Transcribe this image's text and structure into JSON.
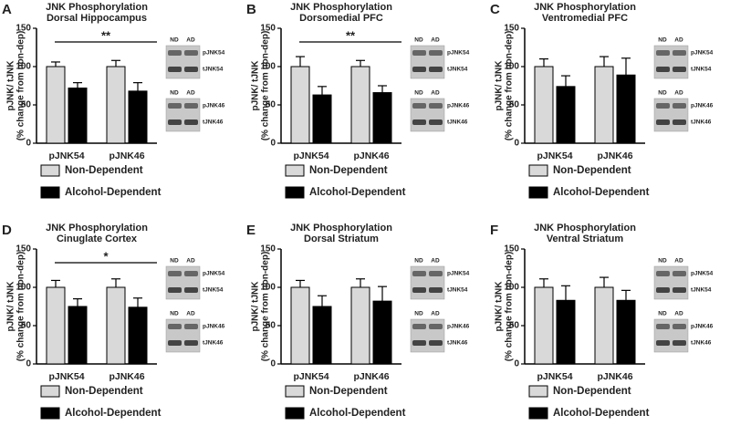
{
  "chart_data": [
    {
      "type": "bar",
      "panel": "A",
      "title": "JNK Phosphorylation",
      "subtitle": "Dorsal Hippocampus",
      "ylabel": [
        "pJNK/ tJNK",
        "(% change from non-dep)"
      ],
      "categories": [
        "pJNK54",
        "pJNK46"
      ],
      "series": [
        {
          "name": "Non-Dependent",
          "color": "#d9d9d9",
          "values": [
            100,
            100
          ],
          "errors": [
            6,
            8
          ]
        },
        {
          "name": "Alcohol-Dependent",
          "color": "#000000",
          "values": [
            72,
            68
          ],
          "errors": [
            7,
            11
          ]
        }
      ],
      "ylim": [
        0,
        150
      ],
      "yticks": [
        0,
        50,
        100,
        150
      ],
      "annotation": "**",
      "blot_lanes": [
        "ND",
        "AD"
      ],
      "blot_bands": [
        "pJNK54",
        "tJNK54",
        "pJNK46",
        "tJNK46"
      ]
    },
    {
      "type": "bar",
      "panel": "B",
      "title": "JNK Phosphorylation",
      "subtitle": "Dorsomedial PFC",
      "ylabel": [
        "pJNK/ tJNK",
        "(% change from non-dep)"
      ],
      "categories": [
        "pJNK54",
        "pJNK46"
      ],
      "series": [
        {
          "name": "Non-Dependent",
          "color": "#d9d9d9",
          "values": [
            100,
            100
          ],
          "errors": [
            13,
            8
          ]
        },
        {
          "name": "Alcohol-Dependent",
          "color": "#000000",
          "values": [
            63,
            66
          ],
          "errors": [
            11,
            9
          ]
        }
      ],
      "ylim": [
        0,
        150
      ],
      "yticks": [
        0,
        50,
        100,
        150
      ],
      "annotation": "**",
      "blot_lanes": [
        "ND",
        "AD"
      ],
      "blot_bands": [
        "pJNK54",
        "tJNK54",
        "pJNK46",
        "tJNK46"
      ]
    },
    {
      "type": "bar",
      "panel": "C",
      "title": "JNK Phosphorylation",
      "subtitle": "Ventromedial PFC",
      "ylabel": [
        "pJNK/ tJNK",
        "(% change from non-dep)"
      ],
      "categories": [
        "pJNK54",
        "pJNK46"
      ],
      "series": [
        {
          "name": "Non-Dependent",
          "color": "#d9d9d9",
          "values": [
            100,
            100
          ],
          "errors": [
            10,
            13
          ]
        },
        {
          "name": "Alcohol-Dependent",
          "color": "#000000",
          "values": [
            74,
            89
          ],
          "errors": [
            14,
            22
          ]
        }
      ],
      "ylim": [
        0,
        150
      ],
      "yticks": [
        0,
        50,
        100,
        150
      ],
      "blot_lanes": [
        "ND",
        "AD"
      ],
      "blot_bands": [
        "pJNK54",
        "tJNK54",
        "pJNK46",
        "tJNK46"
      ]
    },
    {
      "type": "bar",
      "panel": "D",
      "title": "JNK Phosphorylation",
      "subtitle": "Cinuglate Cortex",
      "ylabel": [
        "pJNK/ tJNK",
        "(% change from non-dep)"
      ],
      "categories": [
        "pJNK54",
        "pJNK46"
      ],
      "series": [
        {
          "name": "Non-Dependent",
          "color": "#d9d9d9",
          "values": [
            100,
            100
          ],
          "errors": [
            9,
            11
          ]
        },
        {
          "name": "Alcohol-Dependent",
          "color": "#000000",
          "values": [
            75,
            74
          ],
          "errors": [
            10,
            12
          ]
        }
      ],
      "ylim": [
        0,
        150
      ],
      "yticks": [
        0,
        50,
        100,
        150
      ],
      "annotation": "*",
      "blot_lanes": [
        "ND",
        "AD"
      ],
      "blot_bands": [
        "pJNK54",
        "tJNK54",
        "pJNK46",
        "tJNK46"
      ]
    },
    {
      "type": "bar",
      "panel": "E",
      "title": "JNK Phosphorylation",
      "subtitle": "Dorsal Striatum",
      "ylabel": [
        "pJNK/ tJNK",
        "(% change from non-dep)"
      ],
      "categories": [
        "pJNK54",
        "pJNK46"
      ],
      "series": [
        {
          "name": "Non-Dependent",
          "color": "#d9d9d9",
          "values": [
            100,
            100
          ],
          "errors": [
            9,
            11
          ]
        },
        {
          "name": "Alcohol-Dependent",
          "color": "#000000",
          "values": [
            75,
            82
          ],
          "errors": [
            14,
            19
          ]
        }
      ],
      "ylim": [
        0,
        150
      ],
      "yticks": [
        0,
        50,
        100,
        150
      ],
      "blot_lanes": [
        "ND",
        "AD"
      ],
      "blot_bands": [
        "pJNK54",
        "tJNK54",
        "pJNK46",
        "tJNK46"
      ]
    },
    {
      "type": "bar",
      "panel": "F",
      "title": "JNK Phosphorylation",
      "subtitle": "Ventral Striatum",
      "ylabel": [
        "pJNK/ tJNK",
        "(% change from non-dep)"
      ],
      "categories": [
        "pJNK54",
        "pJNK46"
      ],
      "series": [
        {
          "name": "Non-Dependent",
          "color": "#d9d9d9",
          "values": [
            100,
            100
          ],
          "errors": [
            11,
            13
          ]
        },
        {
          "name": "Alcohol-Dependent",
          "color": "#000000",
          "values": [
            83,
            83
          ],
          "errors": [
            19,
            13
          ]
        }
      ],
      "ylim": [
        0,
        150
      ],
      "yticks": [
        0,
        50,
        100,
        150
      ],
      "blot_lanes": [
        "ND",
        "AD"
      ],
      "blot_bands": [
        "pJNK54",
        "tJNK54",
        "pJNK46",
        "tJNK46"
      ]
    }
  ]
}
